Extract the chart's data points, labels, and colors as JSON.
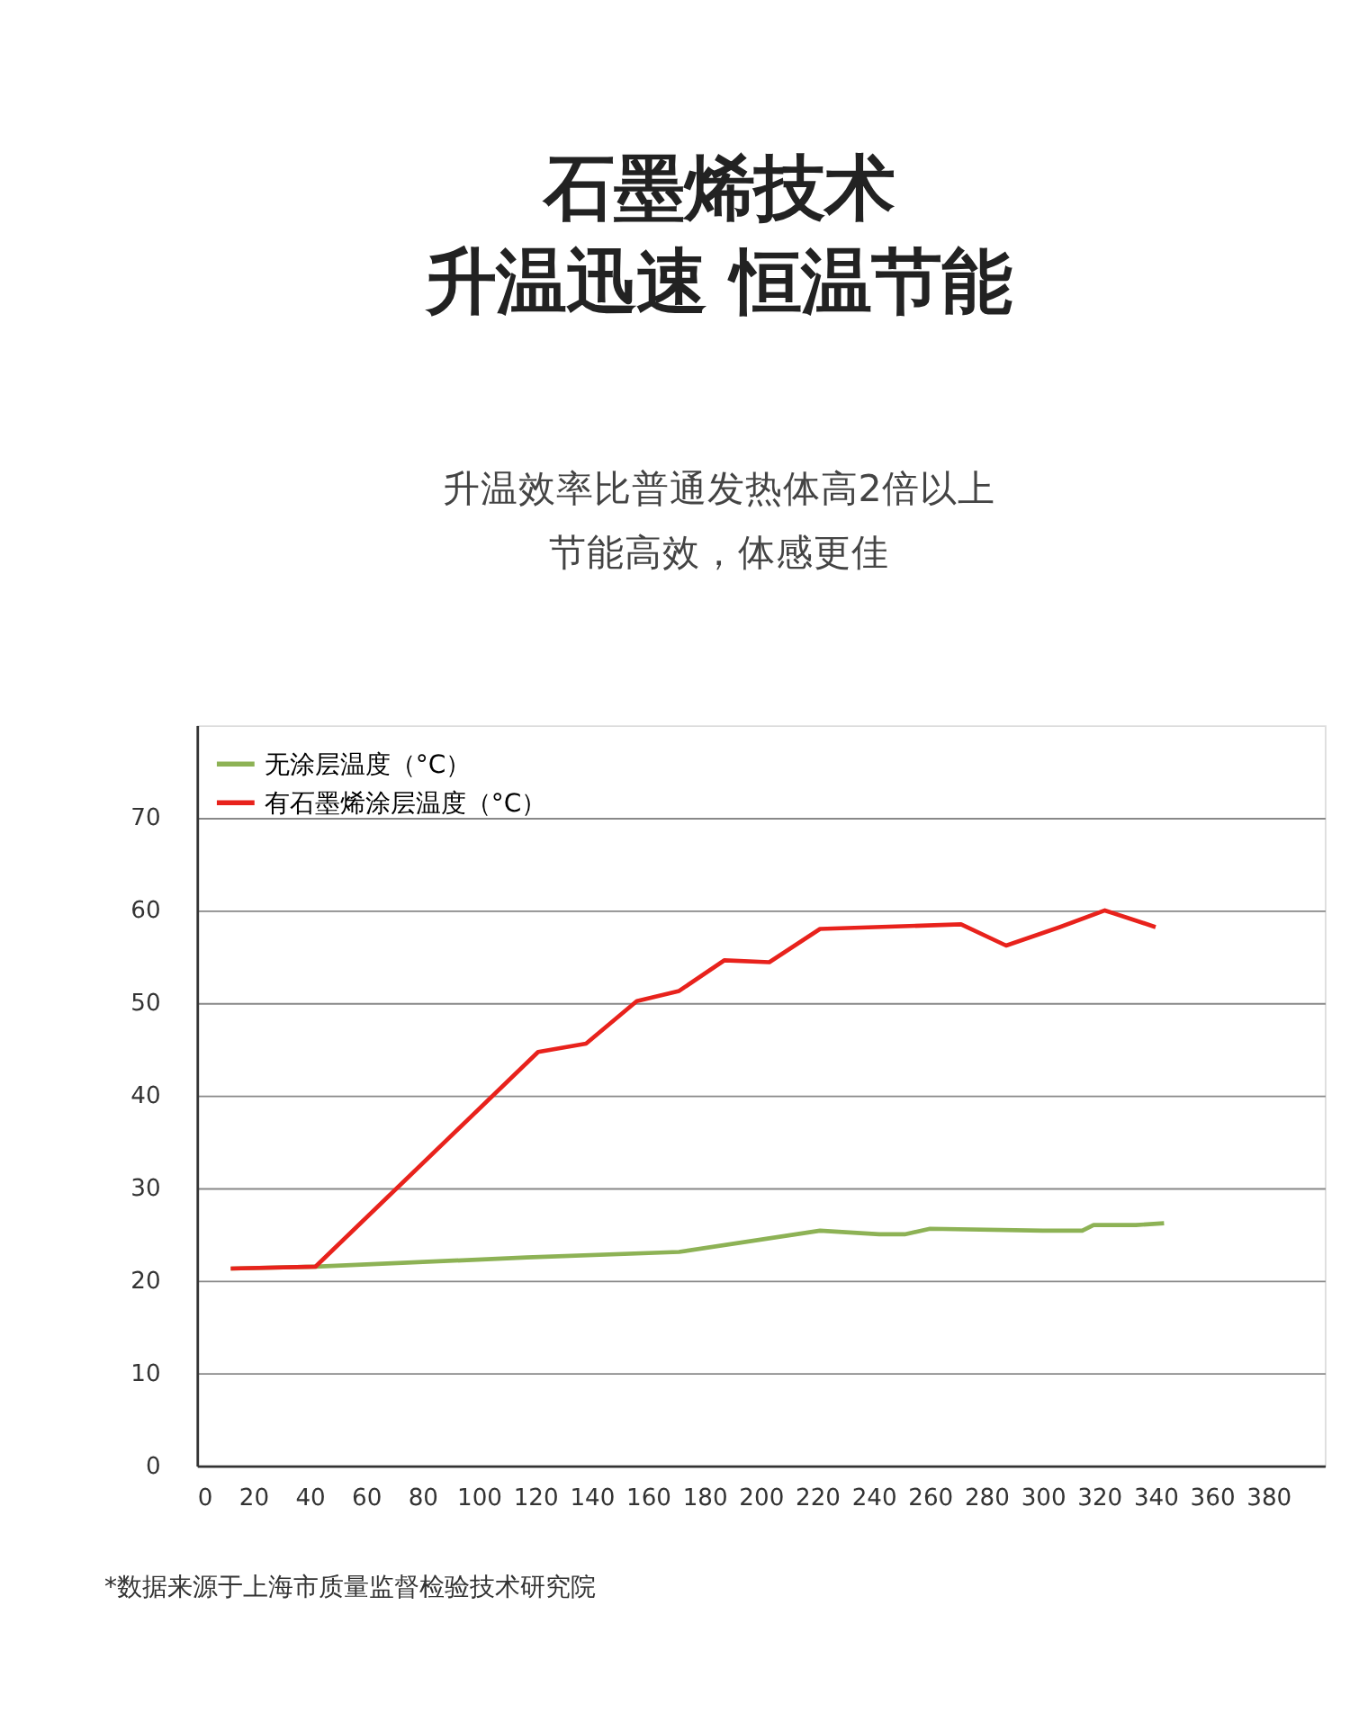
{
  "chart_data": {
    "type": "line",
    "title": "石墨烯技术",
    "subtitle": "升温迅速 恒温节能",
    "series": [
      {
        "name": "无涂层温度（°C）",
        "color": "#8db255",
        "x": [
          12,
          42,
          117,
          171,
          221,
          242,
          251,
          260,
          300,
          314,
          318,
          333,
          343
        ],
        "values": [
          21.3,
          21.5,
          22.5,
          23.1,
          25.4,
          25,
          25,
          25.6,
          25.4,
          25.4,
          26,
          26,
          26.2
        ]
      },
      {
        "name": "有石墨烯涂层温度（°C）",
        "color": "#e8221c",
        "x": [
          12,
          42,
          121,
          138,
          156,
          171,
          187,
          203,
          221,
          271,
          287,
          306,
          322,
          340
        ],
        "values": [
          21.3,
          21.5,
          44.7,
          45.6,
          50.2,
          51.3,
          54.6,
          54.4,
          58,
          58.5,
          56.2,
          58.2,
          60,
          58.2
        ]
      }
    ],
    "xlim": [
      0,
      400
    ],
    "xticks": [
      0,
      20,
      40,
      60,
      80,
      100,
      120,
      140,
      160,
      180,
      200,
      220,
      240,
      260,
      280,
      300,
      320,
      340,
      360,
      380
    ],
    "ylim": [
      0,
      80
    ],
    "yticks": [
      0,
      10,
      20,
      30,
      40,
      50,
      60,
      70
    ],
    "grid": "y",
    "legend": "top left",
    "marker": "none",
    "line_style": "solid",
    "annotations": [
      "升温效率比普通发热体高2倍以上",
      "节能高效，体感更佳",
      "*数据来源于上海市质量监督检验技术研究院"
    ]
  }
}
